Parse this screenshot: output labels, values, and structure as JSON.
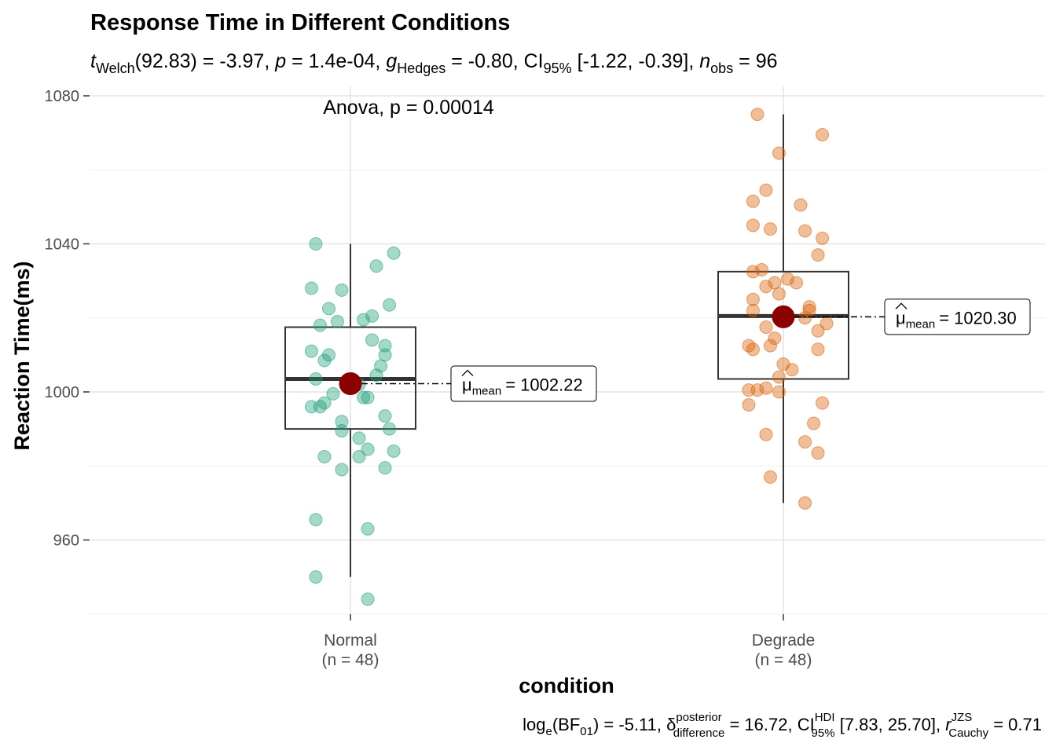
{
  "chart_data": {
    "type": "box",
    "title": "Response Time in Different Conditions",
    "subtitle": {
      "t_symbol": "t",
      "t_sub": "Welch",
      "t_df": "(92.83) = -3.97, ",
      "p_symbol": "p",
      "p_value": " = 1.4e-04, ",
      "g_symbol": "g",
      "g_sub": "Hedges",
      "g_value": " = -0.80, CI",
      "ci_sub": "95%",
      "ci_value": " [-1.22, -0.39], ",
      "n_symbol": "n",
      "n_sub": "obs",
      "n_value": " = 96"
    },
    "caption": {
      "log": "log",
      "log_sub": "e",
      "bf": "(BF",
      "bf_sub": "01",
      "bf_value": ") = -5.11, ",
      "delta_symbol": "δ",
      "delta_sup": "posterior",
      "delta_sub": "difference",
      "delta_value": " = 16.72, CI",
      "hdi_sup": "HDI",
      "hdi_sub": "95%",
      "hdi_value": " [7.83, 25.70], ",
      "r_symbol": "r",
      "r_sup": "JZS",
      "r_sub": "Cauchy",
      "r_value": " = 0.71"
    },
    "annotation": "Anova, p = 0.00014",
    "xlabel": "condition",
    "ylabel": "Reaction Time(ms)",
    "ylim": [
      936,
      1080
    ],
    "yticks": [
      960,
      1000,
      1040,
      1080
    ],
    "grid": true,
    "mean_label_prefix": "μ",
    "mean_label_sub": "mean",
    "groups": [
      {
        "name": "Normal",
        "n_label": "(n = 48)",
        "color": "#1b9e77",
        "box": {
          "q1": 990,
          "median": 1003.5,
          "q3": 1017.5,
          "whisker_low": 950,
          "whisker_high": 1040
        },
        "mean": 1002.22,
        "mean_text": "= 1002.22",
        "points": [
          [
            -0.08,
            1040
          ],
          [
            0.1,
            1037.5
          ],
          [
            0.06,
            1034
          ],
          [
            -0.09,
            1028
          ],
          [
            -0.02,
            1027.5
          ],
          [
            0.09,
            1023.5
          ],
          [
            -0.05,
            1022.5
          ],
          [
            0.03,
            1019.5
          ],
          [
            0.05,
            1020.5
          ],
          [
            -0.03,
            1019
          ],
          [
            -0.07,
            1018
          ],
          [
            0.08,
            1012.5
          ],
          [
            -0.09,
            1011
          ],
          [
            0.05,
            1014
          ],
          [
            -0.05,
            1010
          ],
          [
            0.08,
            1010
          ],
          [
            -0.06,
            1008.5
          ],
          [
            0.07,
            1007
          ],
          [
            0.06,
            1004.5
          ],
          [
            -0.08,
            1003.5
          ],
          [
            0.02,
            1002
          ],
          [
            -0.04,
            999.5
          ],
          [
            0.04,
            998.5
          ],
          [
            0.03,
            998.5
          ],
          [
            -0.06,
            997
          ],
          [
            -0.07,
            996
          ],
          [
            -0.09,
            996
          ],
          [
            0.08,
            993.5
          ],
          [
            -0.02,
            992
          ],
          [
            0.09,
            990
          ],
          [
            -0.02,
            989.5
          ],
          [
            0.02,
            987.5
          ],
          [
            0.04,
            984.5
          ],
          [
            0.1,
            984
          ],
          [
            -0.06,
            982.5
          ],
          [
            0.02,
            982.5
          ],
          [
            -0.02,
            979
          ],
          [
            0.08,
            979.5
          ],
          [
            -0.08,
            965.5
          ],
          [
            0.04,
            963
          ],
          [
            -0.08,
            950
          ],
          [
            0.04,
            944
          ]
        ]
      },
      {
        "name": "Degrade",
        "n_label": "(n = 48)",
        "color": "#d95f02",
        "box": {
          "q1": 1003.5,
          "median": 1020.5,
          "q3": 1032.5,
          "whisker_low": 970,
          "whisker_high": 1075
        },
        "mean": 1020.3,
        "mean_text": "= 1020.30",
        "points": [
          [
            -0.06,
            1075
          ],
          [
            0.09,
            1069.5
          ],
          [
            -0.01,
            1064.5
          ],
          [
            -0.04,
            1054.5
          ],
          [
            -0.07,
            1051.5
          ],
          [
            0.04,
            1050.5
          ],
          [
            -0.07,
            1045
          ],
          [
            -0.03,
            1044
          ],
          [
            0.05,
            1043.5
          ],
          [
            0.09,
            1041.5
          ],
          [
            0.08,
            1037
          ],
          [
            -0.05,
            1033
          ],
          [
            -0.07,
            1032.5
          ],
          [
            0.01,
            1030.5
          ],
          [
            -0.02,
            1029.5
          ],
          [
            -0.04,
            1028.5
          ],
          [
            0.03,
            1029.5
          ],
          [
            -0.01,
            1026.5
          ],
          [
            0.06,
            1023
          ],
          [
            -0.07,
            1025
          ],
          [
            0.06,
            1022
          ],
          [
            -0.07,
            1022
          ],
          [
            0.05,
            1020
          ],
          [
            0.1,
            1018.5
          ],
          [
            -0.04,
            1017.5
          ],
          [
            -0.02,
            1014.5
          ],
          [
            0.08,
            1016.5
          ],
          [
            -0.03,
            1012.5
          ],
          [
            -0.08,
            1012.5
          ],
          [
            -0.07,
            1011.5
          ],
          [
            0.08,
            1011.5
          ],
          [
            0.0,
            1007.5
          ],
          [
            0.02,
            1006
          ],
          [
            -0.01,
            1004
          ],
          [
            -0.08,
            1000.5
          ],
          [
            -0.06,
            1000.5
          ],
          [
            -0.04,
            1001
          ],
          [
            -0.01,
            1000
          ],
          [
            -0.08,
            996.5
          ],
          [
            0.09,
            997
          ],
          [
            0.07,
            991.5
          ],
          [
            -0.04,
            988.5
          ],
          [
            0.05,
            986.5
          ],
          [
            0.08,
            983.5
          ],
          [
            -0.03,
            977
          ],
          [
            0.05,
            970
          ]
        ]
      }
    ]
  }
}
